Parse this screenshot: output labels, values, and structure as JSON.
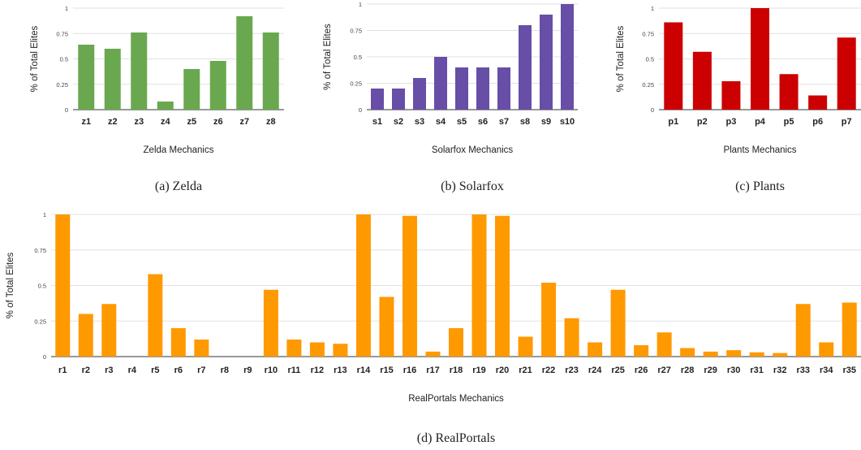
{
  "chart_data": [
    {
      "type": "bar",
      "color": "#6aa84f",
      "ylabel": "% of Total Elites",
      "xlabel": "Zelda Mechanics",
      "caption": "(a) Zelda",
      "ylim": [
        0,
        1
      ],
      "yticks": [
        "0",
        "0.25",
        "0.5",
        "0.75",
        "1"
      ],
      "grid": true,
      "categories": [
        "z1",
        "z2",
        "z3",
        "z4",
        "z5",
        "z6",
        "z7",
        "z8"
      ],
      "values": [
        0.64,
        0.6,
        0.76,
        0.08,
        0.4,
        0.48,
        0.92,
        0.76
      ]
    },
    {
      "type": "bar",
      "color": "#674ea7",
      "ylabel": "% of Total Elites",
      "xlabel": "Solarfox Mechanics",
      "caption": "(b) Solarfox",
      "ylim": [
        0,
        1
      ],
      "yticks": [
        "0",
        "0.25",
        "0.5",
        "0.75",
        "1"
      ],
      "grid": true,
      "categories": [
        "s1",
        "s2",
        "s3",
        "s4",
        "s5",
        "s6",
        "s7",
        "s8",
        "s9",
        "s10"
      ],
      "values": [
        0.2,
        0.2,
        0.3,
        0.5,
        0.4,
        0.4,
        0.4,
        0.8,
        0.9,
        1.0
      ]
    },
    {
      "type": "bar",
      "color": "#cc0000",
      "ylabel": "% of Total Elites",
      "xlabel": "Plants Mechanics",
      "caption": "(c) Plants",
      "ylim": [
        0,
        1
      ],
      "yticks": [
        "0",
        "0.25",
        "0.5",
        "0.75",
        "1"
      ],
      "grid": true,
      "categories": [
        "p1",
        "p2",
        "p3",
        "p4",
        "p5",
        "p6",
        "p7"
      ],
      "values": [
        0.86,
        0.57,
        0.28,
        1.0,
        0.35,
        0.14,
        0.71
      ]
    },
    {
      "type": "bar",
      "color": "#ff9900",
      "ylabel": "% of Total Elites",
      "xlabel": "RealPortals Mechanics",
      "caption": "(d) RealPortals",
      "ylim": [
        0,
        1
      ],
      "yticks": [
        "0",
        "0.25",
        "0.5",
        "0.75",
        "1"
      ],
      "grid": true,
      "categories": [
        "r1",
        "r2",
        "r3",
        "r4",
        "r5",
        "r6",
        "r7",
        "r8",
        "r9",
        "r10",
        "r11",
        "r12",
        "r13",
        "r14",
        "r15",
        "r16",
        "r17",
        "r18",
        "r19",
        "r20",
        "r21",
        "r22",
        "r23",
        "r24",
        "r25",
        "r26",
        "r27",
        "r28",
        "r29",
        "r30",
        "r31",
        "r32",
        "r33",
        "r34",
        "r35"
      ],
      "values": [
        1.0,
        0.3,
        0.37,
        0.0,
        0.58,
        0.2,
        0.12,
        0.0,
        0.0,
        0.47,
        0.12,
        0.1,
        0.09,
        1.0,
        0.42,
        0.99,
        0.035,
        0.2,
        1.0,
        0.99,
        0.14,
        0.52,
        0.27,
        0.1,
        0.47,
        0.08,
        0.17,
        0.06,
        0.035,
        0.045,
        0.03,
        0.025,
        0.37,
        0.1,
        0.38
      ]
    }
  ]
}
